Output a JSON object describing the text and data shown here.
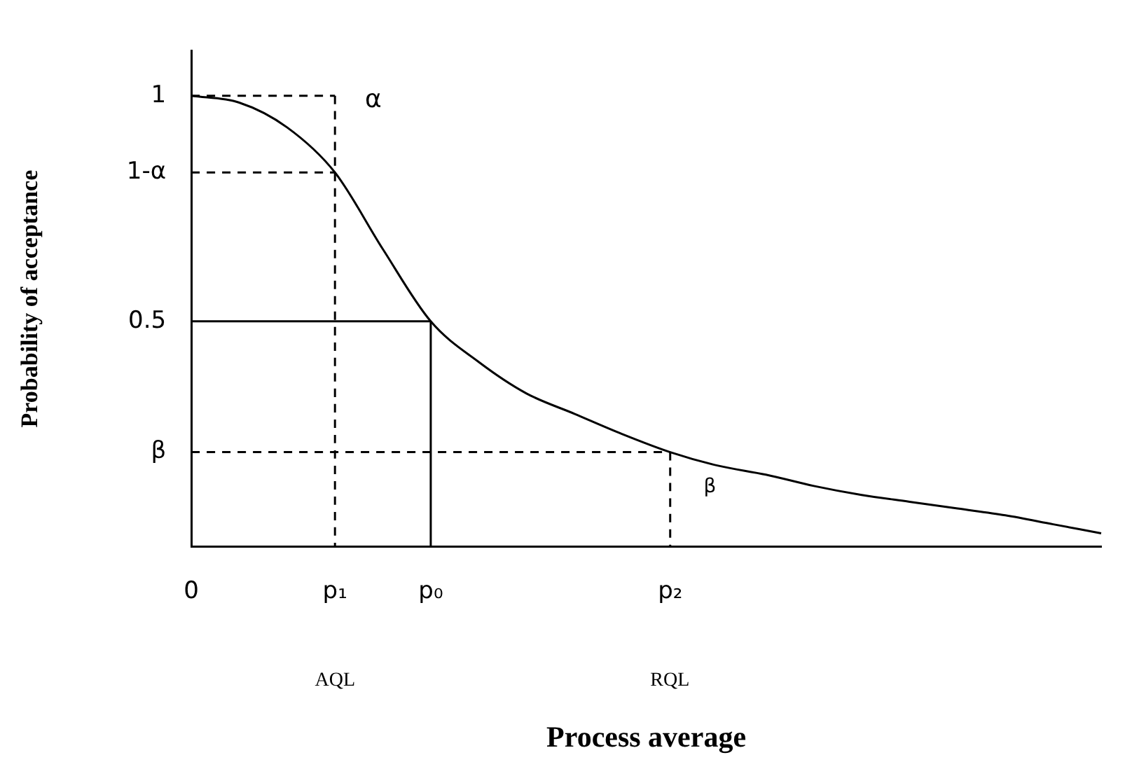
{
  "chart_data": {
    "type": "line",
    "xlabel": "Process average",
    "ylabel": "Probability of acceptance",
    "categories": [
      "0",
      null,
      null,
      "p₁",
      null,
      "p₀",
      null,
      null,
      null,
      null,
      "p₂",
      null,
      null,
      null,
      null,
      null,
      null,
      null,
      null,
      null
    ],
    "ylim": [
      0,
      1.1
    ],
    "yticks": [
      {
        "value": 0.21,
        "label": "β"
      },
      0.5,
      {
        "value": 0.83,
        "label": "1-α"
      },
      1
    ],
    "grid": false,
    "legend": false,
    "marker": "none",
    "series": [
      {
        "color": "#000000",
        "line_style": "solid",
        "values": [
          1,
          0.985,
          0.93,
          0.83,
          0.66,
          0.5,
          0.41,
          0.34,
          0.295,
          0.25,
          0.21,
          0.18,
          0.16,
          0.135,
          0.115,
          0.1,
          0.085,
          0.07,
          0.05,
          0.03
        ]
      },
      {
        "color": "#000000",
        "line_style": "dashed",
        "x": [
          "0",
          "p₁"
        ],
        "values": [
          1,
          1
        ]
      },
      {
        "color": "#000000",
        "line_style": "dashed",
        "x": [
          "0",
          "p₁"
        ],
        "values": [
          0.83,
          0.83
        ]
      },
      {
        "color": "#000000",
        "line_style": "dashed",
        "x": [
          "p₁",
          "p₁"
        ],
        "values": [
          1,
          0
        ]
      },
      {
        "color": "#000000",
        "line_style": "solid",
        "x": [
          "0",
          "p₀"
        ],
        "values": [
          0.5,
          0.5
        ]
      },
      {
        "color": "#000000",
        "line_style": "solid",
        "x": [
          "p₀",
          "p₀"
        ],
        "values": [
          0.5,
          0
        ]
      },
      {
        "color": "#000000",
        "line_style": "dashed",
        "x": [
          "0",
          "p₂"
        ],
        "values": [
          0.21,
          0.21
        ]
      },
      {
        "color": "#000000",
        "line_style": "dashed",
        "x": [
          "p₂",
          "p₂"
        ],
        "values": [
          0.21,
          0
        ]
      }
    ],
    "annotations": [
      "α",
      "β",
      "AQL",
      "RQL"
    ]
  }
}
